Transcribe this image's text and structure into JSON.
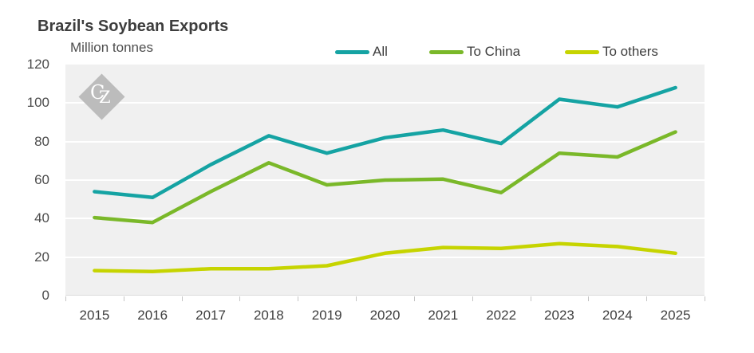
{
  "header": {
    "title": "Brazil's Soybean Exports",
    "subtitle": "Million tonnes"
  },
  "watermark": {
    "letters": [
      "C",
      "Z"
    ]
  },
  "chart_data": {
    "type": "line",
    "title": "Brazil's Soybean Exports",
    "ylabel": "Million tonnes",
    "xlabel": "",
    "categories": [
      "2015",
      "2016",
      "2017",
      "2018",
      "2019",
      "2020",
      "2021",
      "2022",
      "2023",
      "2024",
      "2025"
    ],
    "series": [
      {
        "name": "All",
        "color": "#15a3a3",
        "values": [
          54,
          51,
          68,
          83,
          74,
          82,
          86,
          79,
          102,
          98,
          108
        ]
      },
      {
        "name": "To China",
        "color": "#7ab829",
        "values": [
          40.5,
          38,
          54,
          69,
          57.5,
          60,
          60.5,
          53.5,
          74,
          72,
          85
        ]
      },
      {
        "name": "To others",
        "color": "#c6d400",
        "values": [
          13,
          12.5,
          14,
          14,
          15.5,
          22,
          25,
          24.5,
          27,
          25.5,
          22
        ]
      }
    ],
    "ylim": [
      0,
      120
    ],
    "yticks": [
      0,
      20,
      40,
      60,
      80,
      100,
      120
    ],
    "grid": "horizontal white lines on gray panel",
    "legend_position": "top-right"
  },
  "colors": {
    "plot_bg": "#f0f0f0",
    "gridline": "#ffffff",
    "tick": "#c4c4c4",
    "title_text": "#3d3d3d",
    "axis_text": "#4d4d4d",
    "watermark": "#bcbcbc"
  }
}
